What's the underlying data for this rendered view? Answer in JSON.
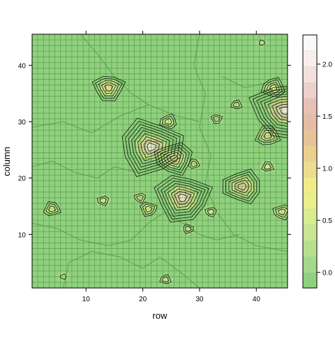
{
  "chart_data": {
    "type": "heatmap",
    "xlabel": "row",
    "ylabel": "column",
    "xlim": [
      0.5,
      45.5
    ],
    "ylim": [
      0.5,
      45.5
    ],
    "x_ticks": [
      10,
      20,
      30,
      40
    ],
    "y_ticks": [
      10,
      20,
      30,
      40
    ],
    "grid": true,
    "base_color": "#8fd17d",
    "colorkey": {
      "position": "right",
      "range": [
        -0.15,
        2.28
      ],
      "ticks": [
        0.0,
        0.5,
        1.0,
        1.5,
        2.0
      ],
      "ticks_text": [
        "0.0",
        "0.5",
        "1.0",
        "1.5",
        "2.0"
      ],
      "colors": [
        "#8fd17d",
        "#a5d98a",
        "#b7e08e",
        "#c8e693",
        "#d9ec90",
        "#e9ef8a",
        "#f1ec8a",
        "#eedd8e",
        "#ead08f",
        "#e6c497",
        "#e5bda4",
        "#e8c1b5",
        "#ecd0ca",
        "#f2e0dd",
        "#f7eeed",
        "#fbf8f8"
      ]
    },
    "hotspots": [
      {
        "x": 14,
        "y": 36,
        "value": 1.3
      },
      {
        "x": 21.5,
        "y": 25.5,
        "value": 2.2
      },
      {
        "x": 25.5,
        "y": 23.5,
        "value": 1.4
      },
      {
        "x": 27,
        "y": 16.5,
        "value": 2.0
      },
      {
        "x": 24.5,
        "y": 30,
        "value": 0.7
      },
      {
        "x": 37.5,
        "y": 18.5,
        "value": 1.6
      },
      {
        "x": 45,
        "y": 32,
        "value": 2.3
      },
      {
        "x": 42,
        "y": 27.5,
        "value": 1.1
      },
      {
        "x": 43,
        "y": 36,
        "value": 0.9
      },
      {
        "x": 42,
        "y": 22,
        "value": 0.6
      },
      {
        "x": 44.5,
        "y": 14,
        "value": 0.8
      },
      {
        "x": 21,
        "y": 14.5,
        "value": 0.7
      },
      {
        "x": 19.5,
        "y": 16.5,
        "value": 0.5
      },
      {
        "x": 29,
        "y": 22.5,
        "value": 0.5
      },
      {
        "x": 32,
        "y": 14,
        "value": 0.5
      },
      {
        "x": 24,
        "y": 2,
        "value": 0.4
      },
      {
        "x": 4,
        "y": 14.5,
        "value": 0.7
      },
      {
        "x": 33,
        "y": 30.5,
        "value": 0.4
      },
      {
        "x": 6,
        "y": 2.5,
        "value": 0.3
      },
      {
        "x": 13,
        "y": 16,
        "value": 0.5
      },
      {
        "x": 28,
        "y": 11,
        "value": 0.4
      },
      {
        "x": 36.5,
        "y": 33,
        "value": 0.4
      },
      {
        "x": 41,
        "y": 44,
        "value": 0.3
      }
    ]
  }
}
